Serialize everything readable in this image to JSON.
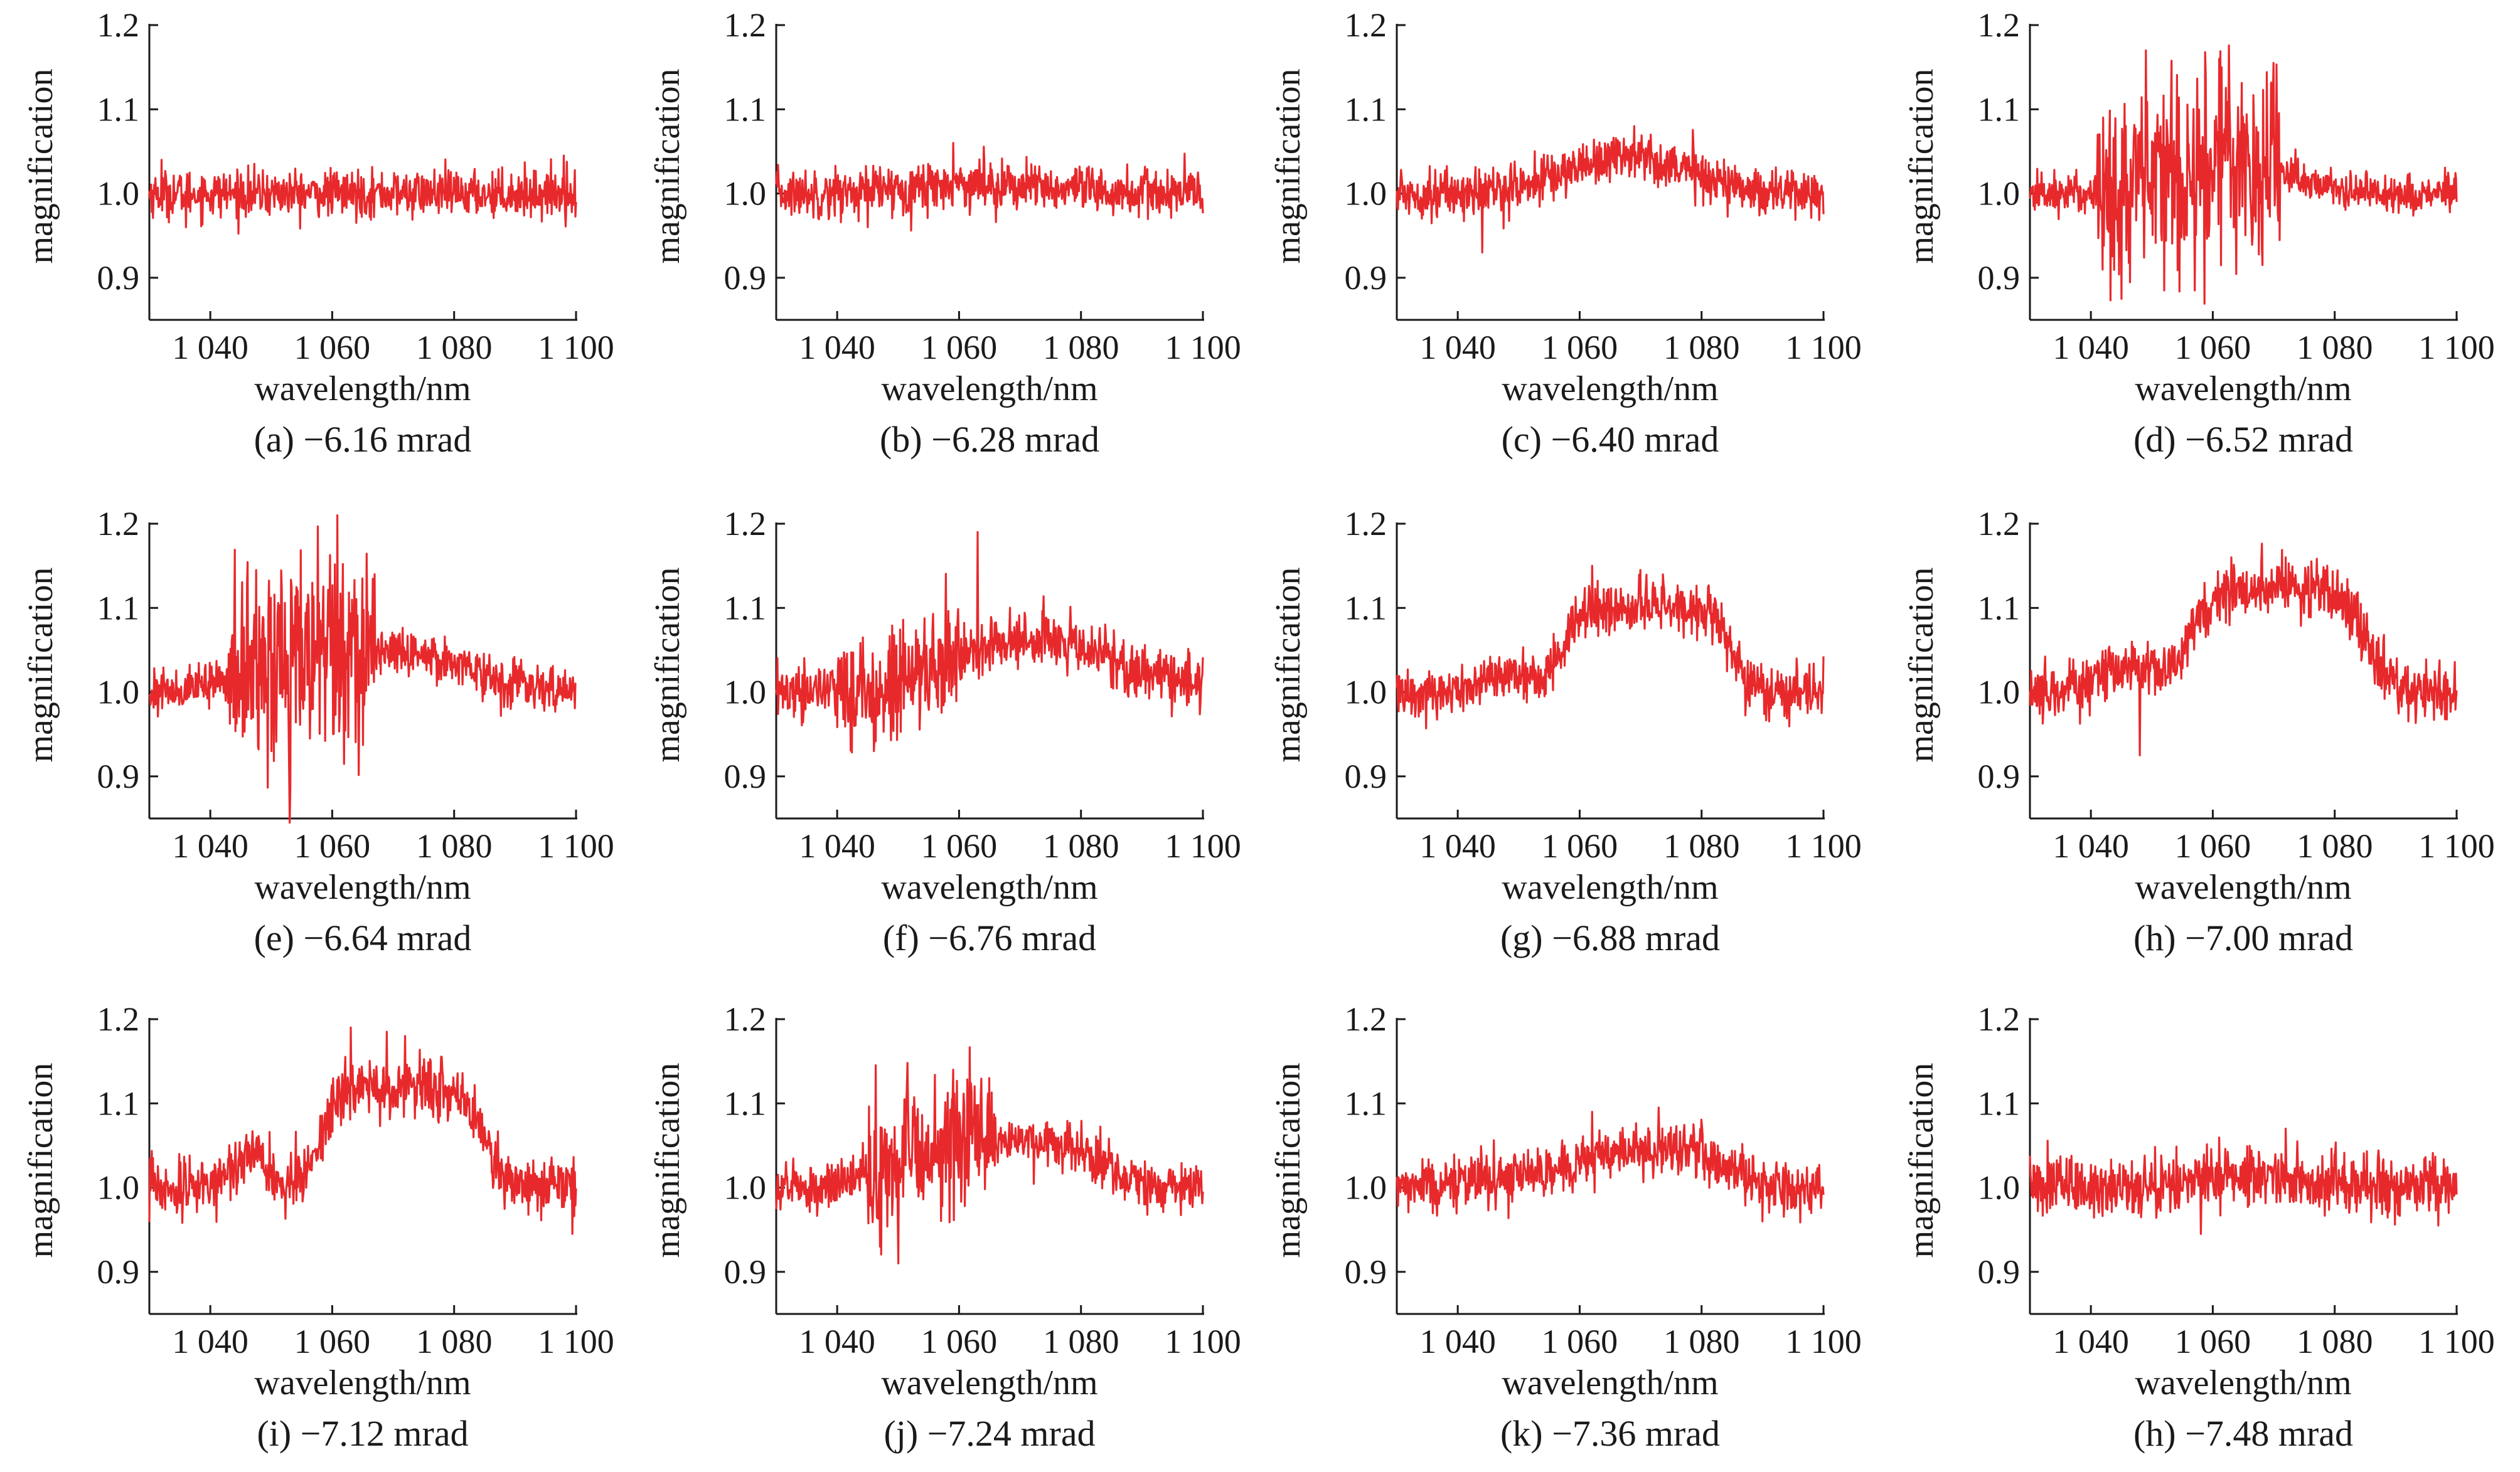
{
  "figure": {
    "series_color": "#e8292c",
    "axis_color": "#1a1a1a"
  },
  "chart_data": [
    {
      "type": "line",
      "caption": "(a) −6.16 mrad",
      "xlabel": "wavelength/nm",
      "ylabel": "magnification",
      "xlim": [
        1030,
        1100
      ],
      "ylim": [
        0.85,
        1.2
      ],
      "x_ticks": [
        1040,
        1060,
        1080,
        1100
      ],
      "x_tick_labels": [
        "1 040",
        "1 060",
        "1 080",
        "1 100"
      ],
      "y_ticks": [
        0.9,
        1.0,
        1.1,
        1.2
      ],
      "y_tick_labels": [
        "0.9",
        "1.0",
        "1.1",
        "1.2"
      ],
      "series": [
        {
          "x_start": 1030,
          "x_end": 1100,
          "baseline": 1.0,
          "noise": 0.016,
          "features": [
            {
              "x": 1032,
              "y": 1.04
            },
            {
              "x": 1036,
              "y": 0.96
            },
            {
              "x": 1098,
              "y": 1.045
            }
          ]
        }
      ]
    },
    {
      "type": "line",
      "caption": "(b) −6.28 mrad",
      "xlabel": "wavelength/nm",
      "ylabel": "magnification",
      "xlim": [
        1030,
        1100
      ],
      "ylim": [
        0.85,
        1.2
      ],
      "x_ticks": [
        1040,
        1060,
        1080,
        1100
      ],
      "x_tick_labels": [
        "1 040",
        "1 060",
        "1 080",
        "1 100"
      ],
      "y_ticks": [
        0.9,
        1.0,
        1.1,
        1.2
      ],
      "y_tick_labels": [
        "0.9",
        "1.0",
        "1.1",
        "1.2"
      ],
      "series": [
        {
          "x_start": 1030,
          "x_end": 1100,
          "baseline": 1.0,
          "bumps": [
            {
              "x": 1062,
              "a": 0.012,
              "w": 14
            }
          ],
          "noise": 0.017,
          "features": [
            {
              "x": 1059,
              "y": 1.06
            },
            {
              "x": 1045,
              "y": 0.96
            }
          ]
        }
      ]
    },
    {
      "type": "line",
      "caption": "(c) −6.40 mrad",
      "xlabel": "wavelength/nm",
      "ylabel": "magnification",
      "xlim": [
        1030,
        1100
      ],
      "ylim": [
        0.85,
        1.2
      ],
      "x_ticks": [
        1040,
        1060,
        1080,
        1100
      ],
      "x_tick_labels": [
        "1 040",
        "1 060",
        "1 080",
        "1 100"
      ],
      "y_ticks": [
        0.9,
        1.0,
        1.1,
        1.2
      ],
      "y_tick_labels": [
        "0.9",
        "1.0",
        "1.1",
        "1.2"
      ],
      "series": [
        {
          "x_start": 1030,
          "x_end": 1100,
          "baseline": 1.0,
          "bumps": [
            {
              "x": 1068,
              "a": 0.045,
              "w": 14
            }
          ],
          "noise": 0.017,
          "features": [
            {
              "x": 1044,
              "y": 0.93
            },
            {
              "x": 1069,
              "y": 1.08
            }
          ]
        }
      ]
    },
    {
      "type": "line",
      "caption": "(d) −6.52 mrad",
      "xlabel": "wavelength/nm",
      "ylabel": "magnification",
      "xlim": [
        1030,
        1100
      ],
      "ylim": [
        0.85,
        1.2
      ],
      "x_ticks": [
        1040,
        1060,
        1080,
        1100
      ],
      "x_tick_labels": [
        "1 040",
        "1 060",
        "1 080",
        "1 100"
      ],
      "y_ticks": [
        0.9,
        1.0,
        1.1,
        1.2
      ],
      "y_tick_labels": [
        "0.9",
        "1.0",
        "1.1",
        "1.2"
      ],
      "series": [
        {
          "x_start": 1030,
          "x_end": 1100,
          "baseline": 1.0,
          "bumps": [
            {
              "x": 1063,
              "a": 0.045,
              "w": 12
            }
          ],
          "noise": 0.014,
          "wild": [
            1041,
            1071,
            0.07
          ],
          "features": [
            {
              "x": 1049,
              "y": 1.17
            },
            {
              "x": 1061,
              "y": 1.16
            },
            {
              "x": 1070,
              "y": 1.155
            },
            {
              "x": 1045,
              "y": 0.875
            },
            {
              "x": 1052,
              "y": 0.885
            },
            {
              "x": 1057,
              "y": 0.885
            }
          ]
        }
      ]
    },
    {
      "type": "line",
      "caption": "(e) −6.64 mrad",
      "xlabel": "wavelength/nm",
      "ylabel": "magnification",
      "xlim": [
        1030,
        1100
      ],
      "ylim": [
        0.85,
        1.2
      ],
      "x_ticks": [
        1040,
        1060,
        1080,
        1100
      ],
      "x_tick_labels": [
        "1 040",
        "1 060",
        "1 080",
        "1 100"
      ],
      "y_ticks": [
        0.9,
        1.0,
        1.1,
        1.2
      ],
      "y_tick_labels": [
        "0.9",
        "1.0",
        "1.1",
        "1.2"
      ],
      "series": [
        {
          "x_start": 1030,
          "x_end": 1100,
          "baseline": 1.0,
          "plateau": [
            1046,
            1084,
            0.05,
            4
          ],
          "noise": 0.016,
          "wild": [
            1043,
            1067,
            0.065
          ],
          "features": [
            {
              "x": 1053,
              "y": 0.845
            },
            {
              "x": 1046,
              "y": 1.13
            },
            {
              "x": 1067,
              "y": 1.14
            },
            {
              "x": 1050,
              "y": 0.93
            }
          ]
        }
      ]
    },
    {
      "type": "line",
      "caption": "(f) −6.76 mrad",
      "xlabel": "wavelength/nm",
      "ylabel": "magnification",
      "xlim": [
        1030,
        1100
      ],
      "ylim": [
        0.85,
        1.2
      ],
      "x_ticks": [
        1040,
        1060,
        1080,
        1100
      ],
      "x_tick_labels": [
        "1 040",
        "1 060",
        "1 080",
        "1 100"
      ],
      "y_ticks": [
        0.9,
        1.0,
        1.1,
        1.2
      ],
      "y_tick_labels": [
        "0.9",
        "1.0",
        "1.1",
        "1.2"
      ],
      "series": [
        {
          "x_start": 1030,
          "x_end": 1100,
          "baseline": 1.0,
          "plateau": [
            1060,
            1085,
            0.08,
            6
          ],
          "noise": 0.02,
          "wild": [
            1040,
            1060,
            0.04
          ],
          "features": [
            {
              "x": 1063,
              "y": 1.19
            },
            {
              "x": 1046,
              "y": 0.93
            }
          ]
        }
      ]
    },
    {
      "type": "line",
      "caption": "(g) −6.88 mrad",
      "xlabel": "wavelength/nm",
      "ylabel": "magnification",
      "xlim": [
        1030,
        1100
      ],
      "ylim": [
        0.85,
        1.2
      ],
      "x_ticks": [
        1040,
        1060,
        1080,
        1100
      ],
      "x_tick_labels": [
        "1 040",
        "1 060",
        "1 080",
        "1 100"
      ],
      "y_ticks": [
        0.9,
        1.0,
        1.1,
        1.2
      ],
      "y_tick_labels": [
        "0.9",
        "1.0",
        "1.1",
        "1.2"
      ],
      "series": [
        {
          "x_start": 1030,
          "x_end": 1100,
          "baseline": 1.0,
          "plateau": [
            1057,
            1085,
            0.1,
            1.5
          ],
          "bumps": [
            {
              "x": 1048,
              "a": 0.02,
              "w": 6
            }
          ],
          "noise": 0.018,
          "features": [
            {
              "x": 1062,
              "y": 1.15
            },
            {
              "x": 1070,
              "y": 1.145
            }
          ]
        }
      ]
    },
    {
      "type": "line",
      "caption": "(h) −7.00 mrad",
      "xlabel": "wavelength/nm",
      "ylabel": "magnification",
      "xlim": [
        1030,
        1100
      ],
      "ylim": [
        0.85,
        1.2
      ],
      "x_ticks": [
        1040,
        1060,
        1080,
        1100
      ],
      "x_tick_labels": [
        "1 040",
        "1 060",
        "1 080",
        "1 100"
      ],
      "y_ticks": [
        0.9,
        1.0,
        1.1,
        1.2
      ],
      "y_tick_labels": [
        "0.9",
        "1.0",
        "1.1",
        "1.2"
      ],
      "series": [
        {
          "x_start": 1030,
          "x_end": 1100,
          "baseline": 1.0,
          "plateau": [
            1056,
            1085,
            0.125,
            2
          ],
          "bumps": [
            {
              "x": 1046,
              "a": 0.03,
              "w": 6
            }
          ],
          "noise": 0.02,
          "features": [
            {
              "x": 1048,
              "y": 0.925
            },
            {
              "x": 1063,
              "y": 1.16
            },
            {
              "x": 1072,
              "y": 1.16
            }
          ]
        }
      ]
    },
    {
      "type": "line",
      "caption": "(i) −7.12 mrad",
      "xlabel": "wavelength/nm",
      "ylabel": "magnification",
      "xlim": [
        1030,
        1100
      ],
      "ylim": [
        0.85,
        1.2
      ],
      "x_ticks": [
        1040,
        1060,
        1080,
        1100
      ],
      "x_tick_labels": [
        "1 040",
        "1 060",
        "1 080",
        "1 100"
      ],
      "y_ticks": [
        0.9,
        1.0,
        1.1,
        1.2
      ],
      "y_tick_labels": [
        "0.9",
        "1.0",
        "1.1",
        "1.2"
      ],
      "series": [
        {
          "x_start": 1030,
          "x_end": 1100,
          "baseline": 1.0,
          "plateau": [
            1058,
            1085,
            0.12,
            1.5
          ],
          "bumps": [
            {
              "x": 1046,
              "a": 0.04,
              "w": 4
            }
          ],
          "noise": 0.02,
          "features": [
            {
              "x": 1063,
              "y": 1.19
            },
            {
              "x": 1069,
              "y": 1.185
            },
            {
              "x": 1072,
              "y": 1.18
            }
          ]
        }
      ]
    },
    {
      "type": "line",
      "caption": "(j) −7.24 mrad",
      "xlabel": "wavelength/nm",
      "ylabel": "magnification",
      "xlim": [
        1030,
        1100
      ],
      "ylim": [
        0.85,
        1.2
      ],
      "x_ticks": [
        1040,
        1060,
        1080,
        1100
      ],
      "x_tick_labels": [
        "1 040",
        "1 060",
        "1 080",
        "1 100"
      ],
      "y_ticks": [
        0.9,
        1.0,
        1.1,
        1.2
      ],
      "y_tick_labels": [
        "0.9",
        "1.0",
        "1.1",
        "1.2"
      ],
      "series": [
        {
          "x_start": 1030,
          "x_end": 1100,
          "baseline": 1.0,
          "plateau": [
            1047,
            1084,
            0.055,
            3
          ],
          "noise": 0.016,
          "wild": [
            1045,
            1066,
            0.045
          ],
          "features": [
            {
              "x": 1050,
              "y": 0.91
            },
            {
              "x": 1047,
              "y": 0.93
            },
            {
              "x": 1059,
              "y": 1.14
            },
            {
              "x": 1065,
              "y": 1.13
            }
          ]
        }
      ]
    },
    {
      "type": "line",
      "caption": "(k) −7.36 mrad",
      "xlabel": "wavelength/nm",
      "ylabel": "magnification",
      "xlim": [
        1030,
        1100
      ],
      "ylim": [
        0.85,
        1.2
      ],
      "x_ticks": [
        1040,
        1060,
        1080,
        1100
      ],
      "x_tick_labels": [
        "1 040",
        "1 060",
        "1 080",
        "1 100"
      ],
      "y_ticks": [
        0.9,
        1.0,
        1.1,
        1.2
      ],
      "y_tick_labels": [
        "0.9",
        "1.0",
        "1.1",
        "1.2"
      ],
      "series": [
        {
          "x_start": 1030,
          "x_end": 1100,
          "baseline": 1.0,
          "plateau": [
            1058,
            1085,
            0.045,
            2.5
          ],
          "bumps": [
            {
              "x": 1048,
              "a": 0.012,
              "w": 8
            }
          ],
          "noise": 0.018,
          "features": [
            {
              "x": 1062,
              "y": 1.09
            },
            {
              "x": 1073,
              "y": 1.095
            },
            {
              "x": 1090,
              "y": 0.96
            }
          ]
        }
      ]
    },
    {
      "type": "line",
      "caption": "(h) −7.48 mrad",
      "xlabel": "wavelength/nm",
      "ylabel": "magnification",
      "xlim": [
        1030,
        1100
      ],
      "ylim": [
        0.85,
        1.2
      ],
      "x_ticks": [
        1040,
        1060,
        1080,
        1100
      ],
      "x_tick_labels": [
        "1 040",
        "1 060",
        "1 080",
        "1 100"
      ],
      "y_ticks": [
        0.9,
        1.0,
        1.1,
        1.2
      ],
      "y_tick_labels": [
        "0.9",
        "1.0",
        "1.1",
        "1.2"
      ],
      "series": [
        {
          "x_start": 1030,
          "x_end": 1100,
          "baseline": 1.0,
          "bumps": [
            {
              "x": 1068,
              "a": 0.012,
              "w": 14
            }
          ],
          "noise": 0.022,
          "features": [
            {
              "x": 1058,
              "y": 0.945
            },
            {
              "x": 1072,
              "y": 1.07
            },
            {
              "x": 1097,
              "y": 0.955
            }
          ]
        }
      ]
    }
  ]
}
